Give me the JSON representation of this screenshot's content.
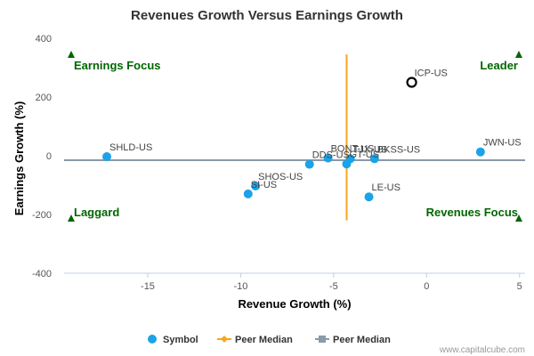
{
  "chart_data": {
    "type": "scatter",
    "title": "Revenues Growth Versus Earnings Growth",
    "xlabel": "Revenue Growth (%)",
    "ylabel": "Earnings Growth (%)",
    "xlim": [
      -19.5,
      5.3
    ],
    "ylim": [
      -400,
      400
    ],
    "xticks": [
      -15,
      -10,
      -5,
      0,
      5
    ],
    "yticks": [
      -400,
      -200,
      0,
      200,
      400
    ],
    "grid": false,
    "legend_position": "bottom",
    "quadrants": {
      "top_left": "Earnings Focus",
      "top_right": "Leader",
      "bottom_left": "Laggard",
      "bottom_right": "Revenues Focus"
    },
    "series": [
      {
        "name": "Symbol",
        "color": "#1aa3e8",
        "points": [
          {
            "label": "ICP-US",
            "x": -0.8,
            "y": 250,
            "highlight": true
          },
          {
            "label": "JWN-US",
            "x": 2.9,
            "y": 13
          },
          {
            "label": "SHLD-US",
            "x": -17.2,
            "y": -3
          },
          {
            "label": "BONT-US",
            "x": -5.3,
            "y": -8
          },
          {
            "label": "TJX-US",
            "x": -4.1,
            "y": -10
          },
          {
            "label": "BKSS-US",
            "x": -2.8,
            "y": -10
          },
          {
            "label": "GT-US",
            "x": -4.3,
            "y": -28
          },
          {
            "label": "DDS-US",
            "x": -6.3,
            "y": -29
          },
          {
            "label": "SHOS-US",
            "x": -9.2,
            "y": -103
          },
          {
            "label": "SI-US",
            "x": -9.6,
            "y": -130
          },
          {
            "label": "LE-US",
            "x": -3.1,
            "y": -140
          }
        ]
      },
      {
        "name": "Peer Median",
        "color": "#f5a623",
        "orientation": "vertical",
        "x": -4.3,
        "y_range": [
          -220,
          345
        ]
      },
      {
        "name": "Peer Median",
        "color": "#8a9aa8",
        "orientation": "horizontal",
        "y": -15,
        "x_range": [
          -19.5,
          5.3
        ]
      }
    ],
    "credit": "www.capitalcube.com",
    "colors": {
      "quadrant_marker": "#006600",
      "highlight_stroke": "#000000"
    }
  }
}
